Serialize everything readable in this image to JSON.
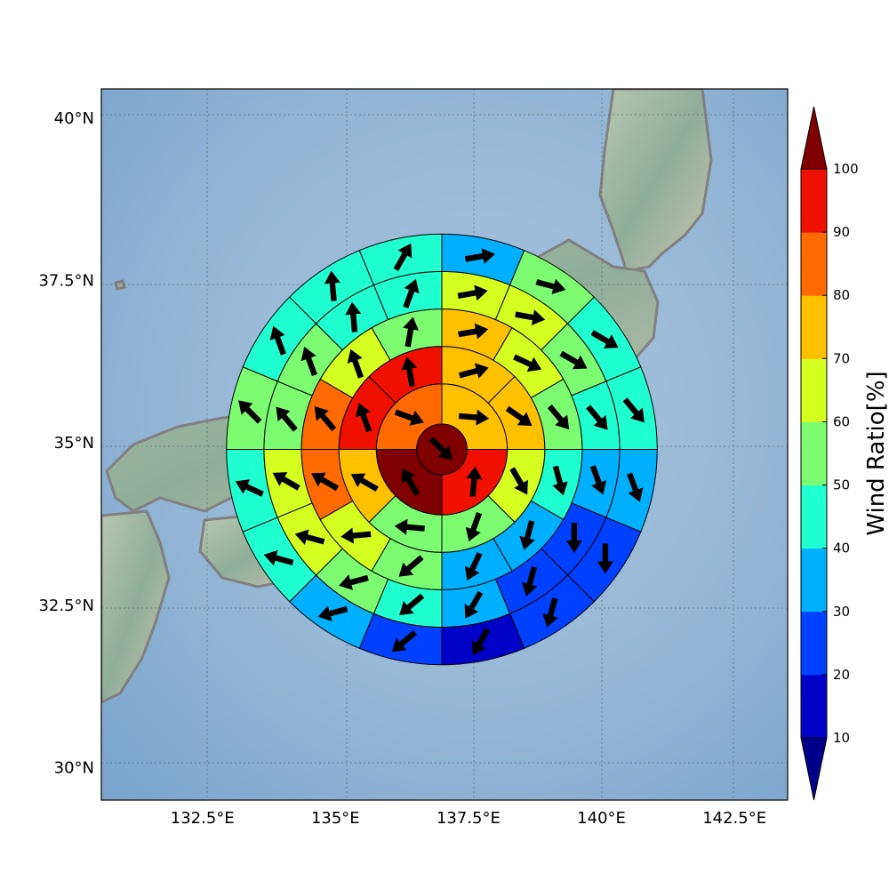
{
  "chart_data": {
    "type": "heatmap",
    "title": "",
    "map": {
      "lon_range": [
        130.6,
        143.5
      ],
      "lat_range": [
        29.5,
        40.45
      ],
      "lon_ticks": [
        "132.5°E",
        "135°E",
        "137.5°E",
        "140°E",
        "142.5°E"
      ],
      "lon_tick_values": [
        132.5,
        135,
        137.5,
        140,
        142.5
      ],
      "lat_ticks": [
        "40°N",
        "37.5°N",
        "35°N",
        "32.5°N",
        "30°N"
      ],
      "lat_tick_values": [
        40,
        37.5,
        35,
        32.5,
        30
      ],
      "grid": true,
      "grid_style": "dotted",
      "background": "shaded relief with gray coastlines",
      "colors": {
        "ocean": "#8fb3d3",
        "land": "#9fb8a0",
        "coast": "#808080"
      }
    },
    "polar_grid": {
      "center": [
        137.0,
        34.9
      ],
      "radius_bands_deg": [
        [
          0,
          0.54
        ],
        [
          0,
          1.4
        ],
        [
          0,
          2.2
        ],
        [
          0,
          3.0
        ],
        [
          0,
          3.8
        ],
        [
          0,
          4.6
        ]
      ],
      "rings": [
        {
          "ring": 1,
          "sectors": 1,
          "values": [
            100
          ],
          "wind_dir_deg": [
            135
          ]
        },
        {
          "ring": 2,
          "sectors": 4,
          "values": [
            75,
            95,
            100,
            85
          ],
          "wind_dir_deg": [
            95,
            5,
            330,
            110
          ]
        },
        {
          "ring": 3,
          "sectors": 8,
          "values": [
            75,
            75,
            65,
            55,
            55,
            75,
            95,
            95
          ],
          "wind_dir_deg": [
            75,
            125,
            150,
            200,
            275,
            300,
            340,
            350
          ]
        },
        {
          "ring": 4,
          "sectors": 12,
          "values": [
            75,
            65,
            55,
            45,
            35,
            35,
            55,
            65,
            85,
            85,
            65,
            55
          ],
          "wind_dir_deg": [
            80,
            115,
            140,
            165,
            195,
            205,
            230,
            265,
            300,
            320,
            340,
            10
          ]
        },
        {
          "ring": 5,
          "sectors": 16,
          "values": [
            65,
            65,
            55,
            45,
            35,
            25,
            25,
            35,
            45,
            55,
            65,
            65,
            55,
            55,
            45,
            45
          ],
          "wind_dir_deg": [
            80,
            100,
            120,
            140,
            160,
            180,
            195,
            210,
            230,
            255,
            285,
            300,
            320,
            340,
            355,
            20
          ]
        },
        {
          "ring": 6,
          "sectors": 16,
          "values": [
            35,
            55,
            45,
            45,
            35,
            25,
            25,
            15,
            25,
            35,
            45,
            45,
            55,
            45,
            45,
            45
          ],
          "wind_dir_deg": [
            80,
            105,
            120,
            140,
            160,
            180,
            195,
            210,
            230,
            255,
            285,
            295,
            315,
            340,
            355,
            30
          ]
        }
      ]
    },
    "colorbar": {
      "label": "Wind Ratio[%]",
      "ticks": [
        "10",
        "20",
        "30",
        "40",
        "50",
        "60",
        "70",
        "80",
        "90",
        "100"
      ],
      "tick_values": [
        10,
        20,
        30,
        40,
        50,
        60,
        70,
        80,
        90,
        100
      ],
      "range": [
        10,
        100
      ],
      "extend": "both",
      "colors": [
        "#0000c8",
        "#0040ff",
        "#00b0ff",
        "#20ffd0",
        "#7cfc70",
        "#d4ff20",
        "#ffc000",
        "#ff6a00",
        "#f01000"
      ],
      "under_color": "#00008b",
      "over_color": "#800000"
    }
  }
}
